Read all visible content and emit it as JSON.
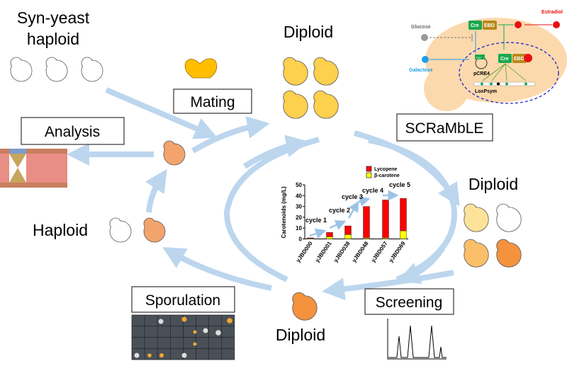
{
  "labels": {
    "syn_yeast_1": "Syn-yeast",
    "syn_yeast_2": "haploid",
    "mating": "Mating",
    "diploid_top": "Diploid",
    "scramble": "SCRaMbLE",
    "diploid_right": "Diploid",
    "screening": "Screening",
    "diploid_bottom": "Diploid",
    "sporulation": "Sporulation",
    "haploid": "Haploid",
    "analysis": "Analysis"
  },
  "inset": {
    "glucose": "Glucose",
    "galactose": "Galactose",
    "estradiol": "Estradiol",
    "cre": "Cre",
    "ebd": "EBD",
    "pcre4": "pCRE4",
    "loxpsym": "LoxPsym",
    "colors": {
      "cell": "#fcd9ad",
      "cre": "#1aa84e",
      "ebd": "#b8891a",
      "estradiol": "#e81010",
      "galactose": "#1ea0e6",
      "glucose": "#999999",
      "nucleus": "#2222cc"
    }
  },
  "chart_data": {
    "type": "bar",
    "stacked": true,
    "ylabel": "Carotenoids (mg/L)",
    "ylim": [
      0,
      50
    ],
    "yticks": [
      "0",
      "10",
      "20",
      "30",
      "40",
      "50"
    ],
    "categories": [
      "yJBD000",
      "yJBD001",
      "yJBD038",
      "yJBD048",
      "yJBD057",
      "yJBD069"
    ],
    "series": [
      {
        "name": "β-carotene",
        "color": "#ffff00",
        "values": [
          0.5,
          2,
          4,
          1,
          1,
          7.5
        ]
      },
      {
        "name": "Lycopene",
        "color": "#ff0000",
        "values": [
          0.5,
          4,
          8,
          29,
          35,
          30
        ]
      }
    ],
    "legend": "top-right",
    "annotations": [
      "cycle 1",
      "cycle 2",
      "cycle 3",
      "cycle 4",
      "cycle 5"
    ]
  },
  "colors": {
    "arrow": "#bcd6ee",
    "diploid_yellow": "#fdd04e",
    "haploid_orange": "#f2a46c",
    "mating": "#ffbf00"
  }
}
